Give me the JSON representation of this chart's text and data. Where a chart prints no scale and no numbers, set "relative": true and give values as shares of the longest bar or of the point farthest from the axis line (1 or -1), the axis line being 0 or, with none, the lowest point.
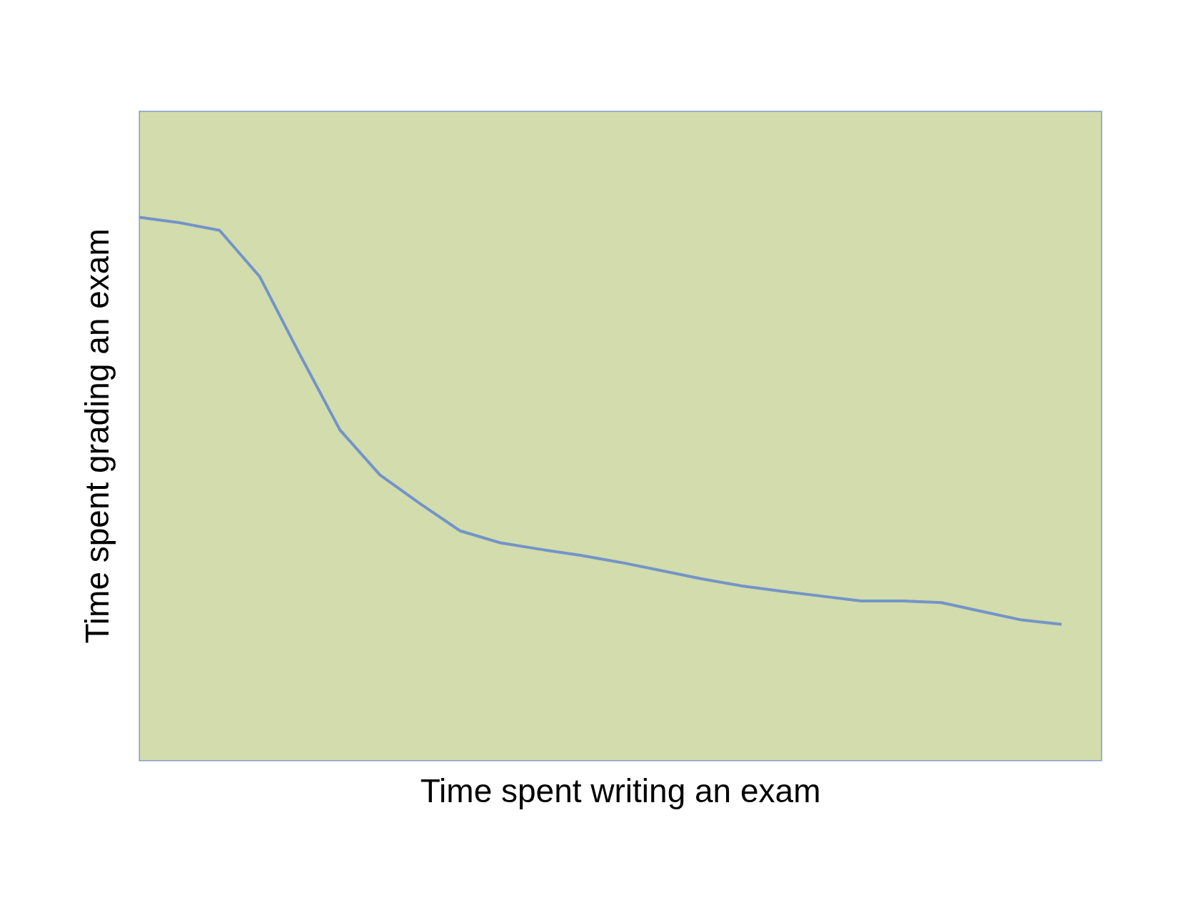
{
  "chart_data": {
    "type": "line",
    "relative": true,
    "xlabel": "Time spent writing an exam",
    "ylabel": "Time spent grading an exam",
    "categories": [
      null,
      null,
      null,
      null,
      null,
      null,
      null,
      null,
      null,
      null,
      null,
      null,
      null,
      null,
      null,
      null,
      null,
      null,
      null,
      null,
      null,
      null,
      null,
      null,
      null
    ],
    "series": [
      {
        "color": "#7394c8",
        "values": [
          1.0,
          0.99,
          0.976,
          0.891,
          0.748,
          0.609,
          0.526,
          0.473,
          0.423,
          0.401,
          0.389,
          0.378,
          0.365,
          0.35,
          0.335,
          0.322,
          0.312,
          0.303,
          0.294,
          0.294,
          0.291,
          0.275,
          0.259,
          0.251,
          null
        ]
      }
    ],
    "grid": false,
    "legend": false,
    "marker": "none",
    "line_style": "solid"
  }
}
